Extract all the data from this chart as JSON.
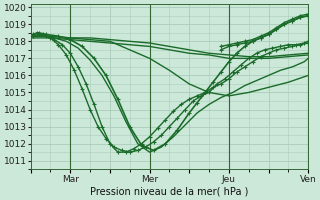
{
  "bg_color": "#cce8d8",
  "grid_color": "#aaccbb",
  "line_color": "#1a6b2a",
  "marker_color": "#1a6b2a",
  "xlabel": "Pression niveau de la mer( hPa )",
  "ylim": [
    1010.5,
    1020.2
  ],
  "yticks": [
    1011,
    1012,
    1013,
    1014,
    1015,
    1016,
    1017,
    1018,
    1019,
    1020
  ],
  "xtick_labels": [
    "",
    "Mar",
    "",
    "Mer",
    "",
    "Jeu",
    "",
    "Ven"
  ],
  "xtick_positions": [
    0,
    1,
    2,
    3,
    4,
    5,
    6,
    7
  ],
  "lines": [
    {
      "x": [
        0.05,
        0.15,
        0.3,
        0.5,
        0.7,
        0.9,
        1.1,
        1.3,
        1.5,
        1.7,
        1.9,
        2.1,
        2.3,
        2.5,
        2.7,
        2.9,
        3.1,
        3.3,
        3.5,
        3.7,
        3.9,
        4.1,
        4.3,
        4.5,
        4.7,
        4.9,
        5.1,
        5.3,
        5.5,
        5.7,
        5.9,
        6.1,
        6.3,
        6.5,
        6.7,
        6.9,
        7.0
      ],
      "y": [
        1018.3,
        1018.5,
        1018.4,
        1018.2,
        1017.8,
        1017.2,
        1016.3,
        1015.2,
        1014.0,
        1013.0,
        1012.3,
        1011.8,
        1011.6,
        1011.5,
        1011.6,
        1011.8,
        1012.1,
        1012.5,
        1013.0,
        1013.5,
        1014.0,
        1014.5,
        1014.8,
        1015.0,
        1015.5,
        1015.8,
        1016.2,
        1016.6,
        1017.0,
        1017.3,
        1017.5,
        1017.6,
        1017.7,
        1017.8,
        1017.8,
        1017.9,
        1018.0
      ],
      "lw": 1.0,
      "marker": "+"
    },
    {
      "x": [
        0.05,
        0.2,
        0.4,
        0.6,
        0.8,
        1.0,
        1.2,
        1.4,
        1.6,
        1.8,
        2.0,
        2.2,
        2.4,
        2.6,
        2.8,
        3.0,
        3.2,
        3.4,
        3.6,
        3.8,
        4.0,
        4.2,
        4.4,
        4.6,
        4.8,
        5.0,
        5.2,
        5.4,
        5.6,
        5.8,
        6.0,
        6.2,
        6.4,
        6.6,
        6.8,
        7.0
      ],
      "y": [
        1018.3,
        1018.4,
        1018.3,
        1018.1,
        1017.8,
        1017.3,
        1016.5,
        1015.5,
        1014.3,
        1013.0,
        1012.0,
        1011.5,
        1011.5,
        1011.7,
        1012.0,
        1012.4,
        1012.9,
        1013.4,
        1013.9,
        1014.3,
        1014.6,
        1014.8,
        1015.0,
        1015.3,
        1015.5,
        1015.8,
        1016.2,
        1016.5,
        1016.8,
        1017.1,
        1017.3,
        1017.5,
        1017.6,
        1017.7,
        1017.8,
        1017.9
      ],
      "lw": 1.0,
      "marker": "+"
    },
    {
      "x": [
        0.05,
        0.3,
        0.6,
        0.9,
        1.2,
        1.5,
        1.8,
        2.1,
        2.4,
        2.7,
        3.0,
        3.3,
        3.6,
        3.9,
        4.2,
        4.5,
        4.8,
        5.1,
        5.4,
        5.7,
        6.0,
        6.3,
        6.6,
        6.9,
        7.0
      ],
      "y": [
        1018.3,
        1018.3,
        1018.2,
        1018.0,
        1017.6,
        1016.9,
        1016.0,
        1014.8,
        1013.3,
        1012.0,
        1011.5,
        1011.8,
        1012.4,
        1013.1,
        1013.8,
        1014.3,
        1014.7,
        1015.0,
        1015.4,
        1015.7,
        1016.0,
        1016.3,
        1016.5,
        1016.8,
        1017.0
      ],
      "lw": 1.0,
      "marker": null
    },
    {
      "x": [
        0.05,
        0.5,
        1.0,
        1.5,
        2.0,
        2.5,
        3.0,
        3.5,
        4.0,
        4.5,
        5.0,
        5.5,
        6.0,
        6.5,
        7.0
      ],
      "y": [
        1018.3,
        1018.3,
        1018.2,
        1018.1,
        1018.0,
        1017.5,
        1017.0,
        1016.3,
        1015.5,
        1015.0,
        1014.8,
        1015.0,
        1015.3,
        1015.6,
        1016.0
      ],
      "lw": 1.0,
      "marker": null
    },
    {
      "x": [
        0.05,
        0.5,
        1.0,
        1.5,
        2.0,
        2.5,
        3.0,
        3.5,
        4.0,
        4.5,
        5.0,
        5.5,
        6.0,
        6.5,
        7.0
      ],
      "y": [
        1018.3,
        1018.3,
        1018.2,
        1018.2,
        1018.1,
        1018.0,
        1017.9,
        1017.7,
        1017.5,
        1017.3,
        1017.2,
        1017.1,
        1017.1,
        1017.2,
        1017.3
      ],
      "lw": 1.0,
      "marker": null
    },
    {
      "x": [
        0.05,
        0.5,
        1.0,
        1.5,
        2.0,
        2.5,
        3.0,
        3.5,
        4.0,
        4.5,
        5.0,
        5.5,
        6.0,
        6.5,
        7.0
      ],
      "y": [
        1018.2,
        1018.2,
        1018.1,
        1018.0,
        1017.9,
        1017.8,
        1017.7,
        1017.5,
        1017.3,
        1017.2,
        1017.0,
        1017.0,
        1017.0,
        1017.1,
        1017.2
      ],
      "lw": 1.0,
      "marker": null
    },
    {
      "x": [
        4.8,
        5.0,
        5.2,
        5.4,
        5.6,
        5.8,
        6.0,
        6.2,
        6.4,
        6.6,
        6.8,
        7.0
      ],
      "y": [
        1017.7,
        1017.8,
        1017.9,
        1018.0,
        1018.1,
        1018.3,
        1018.5,
        1018.8,
        1019.1,
        1019.3,
        1019.5,
        1019.6
      ],
      "lw": 1.0,
      "marker": "+"
    },
    {
      "x": [
        4.8,
        5.0,
        5.2,
        5.4,
        5.6,
        5.8,
        6.0,
        6.2,
        6.4,
        6.6,
        6.8,
        7.0
      ],
      "y": [
        1017.5,
        1017.7,
        1017.8,
        1017.9,
        1018.0,
        1018.2,
        1018.4,
        1018.7,
        1019.0,
        1019.2,
        1019.4,
        1019.5
      ],
      "lw": 1.0,
      "marker": "+"
    },
    {
      "x": [
        0.05,
        0.2,
        0.4,
        0.7,
        1.0,
        1.3,
        1.6,
        1.9,
        2.2,
        2.5,
        2.8,
        3.1,
        3.4,
        3.7,
        4.0,
        4.2,
        4.4,
        4.6,
        4.8,
        5.0,
        5.2,
        5.4,
        5.6,
        5.8,
        6.0,
        6.2,
        6.4,
        6.6,
        6.8,
        7.0
      ],
      "y": [
        1018.4,
        1018.5,
        1018.4,
        1018.3,
        1018.1,
        1017.7,
        1017.0,
        1016.0,
        1014.6,
        1013.0,
        1011.9,
        1011.6,
        1012.0,
        1012.8,
        1013.8,
        1014.4,
        1015.0,
        1015.6,
        1016.2,
        1016.8,
        1017.3,
        1017.7,
        1018.0,
        1018.2,
        1018.4,
        1018.7,
        1019.0,
        1019.2,
        1019.4,
        1019.5
      ],
      "lw": 1.2,
      "marker": "+"
    }
  ],
  "vlines_x": [
    1.0,
    3.0,
    5.0,
    7.0
  ],
  "vline_color": "#336633",
  "axis_label_fontsize": 7,
  "tick_fontsize": 6.5
}
